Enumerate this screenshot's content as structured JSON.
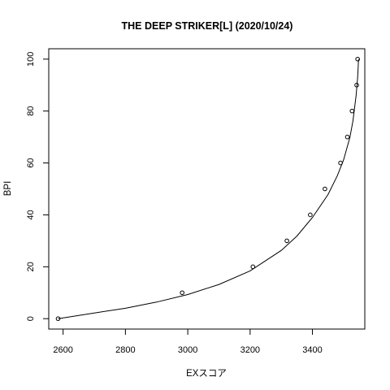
{
  "chart_data": {
    "type": "scatter",
    "title": "THE DEEP STRIKER[L] (2020/10/24)",
    "xlabel": "EXスコア",
    "ylabel": "BPI",
    "xlim": [
      2554,
      3568
    ],
    "ylim": [
      -4,
      104
    ],
    "xticks": [
      2600,
      2800,
      3000,
      3200,
      3400
    ],
    "yticks": [
      0,
      20,
      40,
      60,
      80,
      100
    ],
    "grid": false,
    "legend": "none",
    "points": [
      {
        "x": 2584,
        "y": 0
      },
      {
        "x": 2982,
        "y": 10
      },
      {
        "x": 3209,
        "y": 20
      },
      {
        "x": 3318,
        "y": 30
      },
      {
        "x": 3393,
        "y": 40
      },
      {
        "x": 3440,
        "y": 50
      },
      {
        "x": 3490,
        "y": 60
      },
      {
        "x": 3512,
        "y": 70
      },
      {
        "x": 3527,
        "y": 80
      },
      {
        "x": 3542,
        "y": 90
      },
      {
        "x": 3545,
        "y": 100
      }
    ],
    "fit_curve": {
      "description": "fitted line",
      "points": [
        {
          "x": 2584,
          "y": 0
        },
        {
          "x": 2700,
          "y": 2.2
        },
        {
          "x": 2800,
          "y": 4.0
        },
        {
          "x": 2900,
          "y": 6.4
        },
        {
          "x": 3000,
          "y": 9.3
        },
        {
          "x": 3100,
          "y": 13.2
        },
        {
          "x": 3200,
          "y": 18.4
        },
        {
          "x": 3300,
          "y": 26.3
        },
        {
          "x": 3350,
          "y": 31.8
        },
        {
          "x": 3400,
          "y": 39.0
        },
        {
          "x": 3450,
          "y": 47.8
        },
        {
          "x": 3480,
          "y": 55.1
        },
        {
          "x": 3500,
          "y": 61.2
        },
        {
          "x": 3520,
          "y": 69.8
        },
        {
          "x": 3530,
          "y": 76.2
        },
        {
          "x": 3540,
          "y": 86.0
        },
        {
          "x": 3545,
          "y": 93.0
        },
        {
          "x": 3548,
          "y": 100
        }
      ]
    }
  }
}
